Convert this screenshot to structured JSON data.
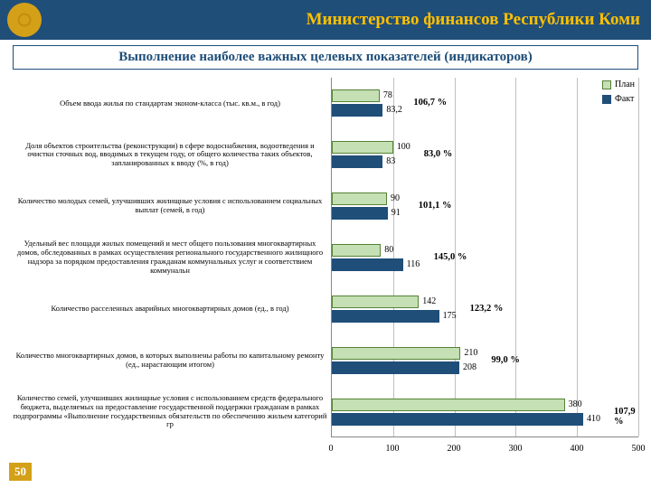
{
  "header": {
    "title": "Министерство финансов Республики Коми"
  },
  "subheader": "Выполнение наиболее важных целевых показателей (индикаторов)",
  "page_number": "50",
  "legend": {
    "plan": "План",
    "fact": "Факт"
  },
  "chart": {
    "type": "bar",
    "orientation": "horizontal",
    "x_min": 0,
    "x_max": 500,
    "x_step": 100,
    "plan_color": "#c5e0b4",
    "plan_border": "#548235",
    "fact_color": "#1f4e79",
    "grid_color": "#bfbfbf",
    "axis_color": "#888888",
    "label_fontsize": 8.5,
    "value_fontsize": 10,
    "rows": [
      {
        "label": "Объем ввода жилья по стандартам эконом-класса (тыс. кв.м., в год)",
        "plan": 78,
        "fact": 83.2,
        "pct": "106,7 %",
        "plan_disp": "78",
        "fact_disp": "83,2"
      },
      {
        "label": "Доля объектов строительства (реконструкции) в сфере водоснабжения, водоотведения и очистки сточных вод, вводимых в текущем году, от общего количества таких объектов, запланированных к вводу (%, в год)",
        "plan": 100,
        "fact": 83,
        "pct": "83,0 %",
        "plan_disp": "100",
        "fact_disp": "83"
      },
      {
        "label": "Количество молодых семей, улучшивших жилищные условия с использованием   социальных   выплат (семей, в год)",
        "plan": 90,
        "fact": 91,
        "pct": "101,1 %",
        "plan_disp": "90",
        "fact_disp": "91"
      },
      {
        "label": "Удельный вес площади жилых помещений и мест общего пользования многоквартирных домов, обследованных в рамках осуществления регионального государственного жилищного надзора за порядком предоставления гражданам коммунальных услуг и соответствием коммунальн",
        "plan": 80,
        "fact": 116,
        "pct": "145,0 %",
        "plan_disp": "80",
        "fact_disp": "116"
      },
      {
        "label": "Количество расселенных аварийных многоквартирных домов (ед., в год)",
        "plan": 142,
        "fact": 175,
        "pct": "123,2 %",
        "plan_disp": "142",
        "fact_disp": "175"
      },
      {
        "label": "Количество многоквартирных домов, в которых выполнены работы по капитальному ремонту (ед., нарастающим итогом)",
        "plan": 210,
        "fact": 208,
        "pct": "99,0 %",
        "plan_disp": "210",
        "fact_disp": "208"
      },
      {
        "label": "Количество семей, улучшивших жилищные условия с использованием средств федерального бюджета, выделяемых на предоставление государственной поддержки гражданам в рамках подпрограммы «Выполнение государственных обязательств по обеспечению жильем категорий гр",
        "plan": 380,
        "fact": 410,
        "pct": "107,9 %",
        "plan_disp": "380",
        "fact_disp": "410"
      }
    ]
  }
}
